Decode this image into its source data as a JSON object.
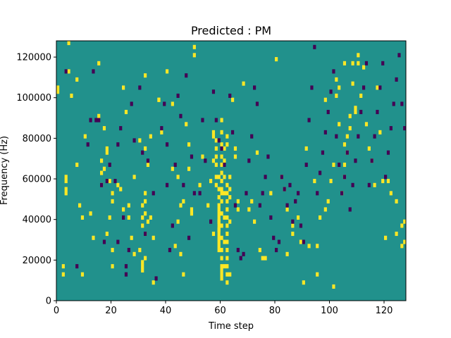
{
  "chart_data": {
    "type": "heatmap",
    "title": "Predicted : PM",
    "xlabel": "Time step",
    "ylabel": "Frequency (Hz)",
    "xlim": [
      0,
      128
    ],
    "ylim": [
      0,
      128000
    ],
    "x_ticks": [
      "0",
      "20",
      "40",
      "60",
      "80",
      "100",
      "120"
    ],
    "y_ticks": [
      "0",
      "20000",
      "40000",
      "60000",
      "80000",
      "100000",
      "120000"
    ],
    "grid": false,
    "colors": {
      "background": "#21918c",
      "high": "#fde725",
      "low": "#440154"
    },
    "n_freq_bins": 64,
    "bin_hz": 2000,
    "yellow_cells": [
      [
        0,
        52
      ],
      [
        0,
        51
      ],
      [
        2,
        8
      ],
      [
        2,
        6
      ],
      [
        3,
        30
      ],
      [
        3,
        29
      ],
      [
        3,
        27
      ],
      [
        3,
        26
      ],
      [
        4,
        56
      ],
      [
        4,
        63
      ],
      [
        5,
        50
      ],
      [
        7,
        54
      ],
      [
        7,
        33
      ],
      [
        8,
        23
      ],
      [
        9,
        20
      ],
      [
        9,
        6
      ],
      [
        10,
        40
      ],
      [
        12,
        21
      ],
      [
        13,
        15
      ],
      [
        15,
        45
      ],
      [
        15,
        58
      ],
      [
        16,
        28
      ],
      [
        16,
        31
      ],
      [
        16,
        34
      ],
      [
        17,
        42
      ],
      [
        17,
        32
      ],
      [
        18,
        36
      ],
      [
        18,
        37
      ],
      [
        18,
        16
      ],
      [
        19,
        20
      ],
      [
        19,
        29
      ],
      [
        20,
        26
      ],
      [
        20,
        24
      ],
      [
        20,
        8
      ],
      [
        20,
        12
      ],
      [
        22,
        28
      ],
      [
        23,
        27
      ],
      [
        24,
        22
      ],
      [
        24,
        52
      ],
      [
        25,
        46
      ],
      [
        26,
        20
      ],
      [
        26,
        23
      ],
      [
        27,
        15
      ],
      [
        28,
        30
      ],
      [
        28,
        11
      ],
      [
        30,
        39
      ],
      [
        30,
        12
      ],
      [
        31,
        9
      ],
      [
        31,
        8
      ],
      [
        31,
        7
      ],
      [
        31,
        18
      ],
      [
        31,
        20
      ],
      [
        31,
        23
      ],
      [
        32,
        16
      ],
      [
        32,
        21
      ],
      [
        32,
        24
      ],
      [
        32,
        26
      ],
      [
        32,
        37
      ],
      [
        32,
        55
      ],
      [
        32,
        10
      ],
      [
        33,
        33
      ],
      [
        33,
        19
      ],
      [
        34,
        20
      ],
      [
        34,
        40
      ],
      [
        35,
        4
      ],
      [
        35,
        15
      ],
      [
        37,
        49
      ],
      [
        37,
        49
      ],
      [
        38,
        41
      ],
      [
        40,
        56
      ],
      [
        42,
        48
      ],
      [
        42,
        32
      ],
      [
        43,
        13
      ],
      [
        44,
        30
      ],
      [
        44,
        19
      ],
      [
        45,
        23
      ],
      [
        45,
        11
      ],
      [
        46,
        24
      ],
      [
        46,
        6
      ],
      [
        47,
        43
      ],
      [
        48,
        32
      ],
      [
        48,
        38
      ],
      [
        49,
        21
      ],
      [
        49,
        22
      ],
      [
        50,
        60
      ],
      [
        50,
        62
      ],
      [
        52,
        28
      ],
      [
        53,
        35
      ],
      [
        55,
        23
      ],
      [
        56,
        29
      ],
      [
        57,
        40
      ],
      [
        57,
        34
      ],
      [
        57,
        16
      ],
      [
        57,
        41
      ],
      [
        58,
        28
      ],
      [
        58,
        30
      ],
      [
        58,
        33
      ],
      [
        58,
        35
      ],
      [
        58,
        37
      ],
      [
        58,
        39
      ],
      [
        59,
        17
      ],
      [
        59,
        19
      ],
      [
        59,
        12
      ],
      [
        59,
        13
      ],
      [
        59,
        14
      ],
      [
        59,
        15
      ],
      [
        59,
        16
      ],
      [
        59,
        17
      ],
      [
        59,
        18
      ],
      [
        59,
        19
      ],
      [
        59,
        20
      ],
      [
        59,
        21
      ],
      [
        59,
        22
      ],
      [
        59,
        23
      ],
      [
        59,
        25
      ],
      [
        59,
        27
      ],
      [
        59,
        30
      ],
      [
        60,
        44
      ],
      [
        60,
        41
      ],
      [
        60,
        38
      ],
      [
        60,
        33
      ],
      [
        60,
        35
      ],
      [
        60,
        31
      ],
      [
        60,
        29
      ],
      [
        60,
        27
      ],
      [
        60,
        26
      ],
      [
        60,
        24
      ],
      [
        60,
        21
      ],
      [
        60,
        18
      ],
      [
        60,
        15
      ],
      [
        60,
        12
      ],
      [
        60,
        10
      ],
      [
        60,
        8
      ],
      [
        60,
        7
      ],
      [
        60,
        6
      ],
      [
        60,
        5
      ],
      [
        61,
        37
      ],
      [
        61,
        34
      ],
      [
        61,
        30
      ],
      [
        61,
        26
      ],
      [
        61,
        20
      ],
      [
        61,
        8
      ],
      [
        61,
        14
      ],
      [
        62,
        40
      ],
      [
        62,
        38
      ],
      [
        62,
        28
      ],
      [
        62,
        26
      ],
      [
        62,
        24
      ],
      [
        62,
        22
      ],
      [
        62,
        20
      ],
      [
        62,
        18
      ],
      [
        62,
        16
      ],
      [
        62,
        14
      ],
      [
        62,
        12
      ],
      [
        62,
        10
      ],
      [
        62,
        8
      ],
      [
        62,
        6
      ],
      [
        62,
        4
      ],
      [
        63,
        30
      ],
      [
        63,
        27
      ],
      [
        63,
        25
      ],
      [
        63,
        19
      ],
      [
        63,
        6
      ],
      [
        64,
        49
      ],
      [
        65,
        35
      ],
      [
        65,
        37
      ],
      [
        66,
        24
      ],
      [
        66,
        22
      ],
      [
        68,
        53
      ],
      [
        70,
        22
      ],
      [
        71,
        24
      ],
      [
        72,
        19
      ],
      [
        73,
        36
      ],
      [
        74,
        12
      ],
      [
        75,
        10
      ],
      [
        76,
        10
      ],
      [
        78,
        26
      ],
      [
        80,
        59
      ],
      [
        82,
        30
      ],
      [
        83,
        27
      ],
      [
        84,
        11
      ],
      [
        84,
        22
      ],
      [
        86,
        18
      ],
      [
        86,
        16
      ],
      [
        88,
        20
      ],
      [
        89,
        14
      ],
      [
        90,
        4
      ],
      [
        91,
        37
      ],
      [
        92,
        13
      ],
      [
        94,
        29
      ],
      [
        95,
        6
      ],
      [
        95,
        13
      ],
      [
        96,
        20
      ],
      [
        98,
        22
      ],
      [
        98,
        49
      ],
      [
        99,
        24
      ],
      [
        100,
        29
      ],
      [
        101,
        33
      ],
      [
        101,
        3
      ],
      [
        102,
        50
      ],
      [
        102,
        54
      ],
      [
        103,
        52
      ],
      [
        103,
        43
      ],
      [
        104,
        26
      ],
      [
        104,
        26
      ],
      [
        105,
        33
      ],
      [
        105,
        38
      ],
      [
        105,
        58
      ],
      [
        105,
        30
      ],
      [
        106,
        36
      ],
      [
        106,
        40
      ],
      [
        107,
        42
      ],
      [
        107,
        45
      ],
      [
        108,
        53
      ],
      [
        108,
        58
      ],
      [
        109,
        46
      ],
      [
        109,
        47
      ],
      [
        110,
        58
      ],
      [
        110,
        60
      ],
      [
        111,
        50
      ],
      [
        112,
        57
      ],
      [
        113,
        43
      ],
      [
        114,
        37
      ],
      [
        115,
        34
      ],
      [
        116,
        28
      ],
      [
        117,
        52
      ],
      [
        118,
        41
      ],
      [
        119,
        29
      ],
      [
        120,
        15
      ],
      [
        121,
        29
      ],
      [
        122,
        26
      ],
      [
        124,
        24
      ],
      [
        124,
        16
      ],
      [
        126,
        18
      ],
      [
        126,
        13
      ],
      [
        127,
        19
      ],
      [
        127,
        14
      ]
    ],
    "purple_cells": [
      [
        3,
        56
      ],
      [
        7,
        8
      ],
      [
        11,
        38
      ],
      [
        12,
        44
      ],
      [
        13,
        56
      ],
      [
        14,
        44
      ],
      [
        15,
        44
      ],
      [
        16,
        28
      ],
      [
        17,
        14
      ],
      [
        18,
        29
      ],
      [
        19,
        33
      ],
      [
        21,
        29
      ],
      [
        22,
        14
      ],
      [
        22,
        38
      ],
      [
        23,
        42
      ],
      [
        24,
        20
      ],
      [
        25,
        6
      ],
      [
        25,
        8
      ],
      [
        26,
        12
      ],
      [
        27,
        48
      ],
      [
        28,
        39
      ],
      [
        30,
        52
      ],
      [
        31,
        36
      ],
      [
        32,
        16
      ],
      [
        33,
        34
      ],
      [
        35,
        26
      ],
      [
        36,
        5
      ],
      [
        38,
        42
      ],
      [
        39,
        48
      ],
      [
        40,
        38
      ],
      [
        40,
        28
      ],
      [
        41,
        12
      ],
      [
        42,
        18
      ],
      [
        43,
        33
      ],
      [
        44,
        50
      ],
      [
        45,
        45
      ],
      [
        46,
        28
      ],
      [
        47,
        55
      ],
      [
        48,
        15
      ],
      [
        49,
        35
      ],
      [
        50,
        26
      ],
      [
        52,
        26
      ],
      [
        53,
        44
      ],
      [
        54,
        34
      ],
      [
        56,
        19
      ],
      [
        57,
        51
      ],
      [
        58,
        44
      ],
      [
        59,
        39
      ],
      [
        60,
        37
      ],
      [
        61,
        33
      ],
      [
        63,
        50
      ],
      [
        64,
        41
      ],
      [
        65,
        23
      ],
      [
        66,
        12
      ],
      [
        67,
        10
      ],
      [
        68,
        11
      ],
      [
        69,
        26
      ],
      [
        70,
        34
      ],
      [
        71,
        40
      ],
      [
        72,
        52
      ],
      [
        73,
        48
      ],
      [
        74,
        23
      ],
      [
        75,
        26
      ],
      [
        76,
        30
      ],
      [
        77,
        35
      ],
      [
        78,
        20
      ],
      [
        79,
        15
      ],
      [
        80,
        12
      ],
      [
        81,
        14
      ],
      [
        82,
        30
      ],
      [
        83,
        27
      ],
      [
        84,
        23
      ],
      [
        85,
        28
      ],
      [
        86,
        19
      ],
      [
        87,
        24
      ],
      [
        88,
        26
      ],
      [
        89,
        18
      ],
      [
        90,
        14
      ],
      [
        91,
        33
      ],
      [
        92,
        44
      ],
      [
        93,
        52
      ],
      [
        94,
        62
      ],
      [
        95,
        26
      ],
      [
        96,
        31
      ],
      [
        97,
        36
      ],
      [
        98,
        41
      ],
      [
        99,
        46
      ],
      [
        100,
        51
      ],
      [
        101,
        56
      ],
      [
        102,
        40
      ],
      [
        103,
        33
      ],
      [
        104,
        26
      ],
      [
        105,
        30
      ],
      [
        106,
        36
      ],
      [
        107,
        22
      ],
      [
        108,
        28
      ],
      [
        109,
        34
      ],
      [
        110,
        40
      ],
      [
        111,
        46
      ],
      [
        112,
        52
      ],
      [
        113,
        58
      ],
      [
        114,
        28
      ],
      [
        115,
        34
      ],
      [
        116,
        40
      ],
      [
        117,
        46
      ],
      [
        118,
        52
      ],
      [
        119,
        58
      ],
      [
        120,
        30
      ],
      [
        121,
        36
      ],
      [
        122,
        42
      ],
      [
        123,
        48
      ],
      [
        124,
        54
      ],
      [
        125,
        60
      ],
      [
        126,
        48
      ],
      [
        127,
        42
      ]
    ]
  }
}
